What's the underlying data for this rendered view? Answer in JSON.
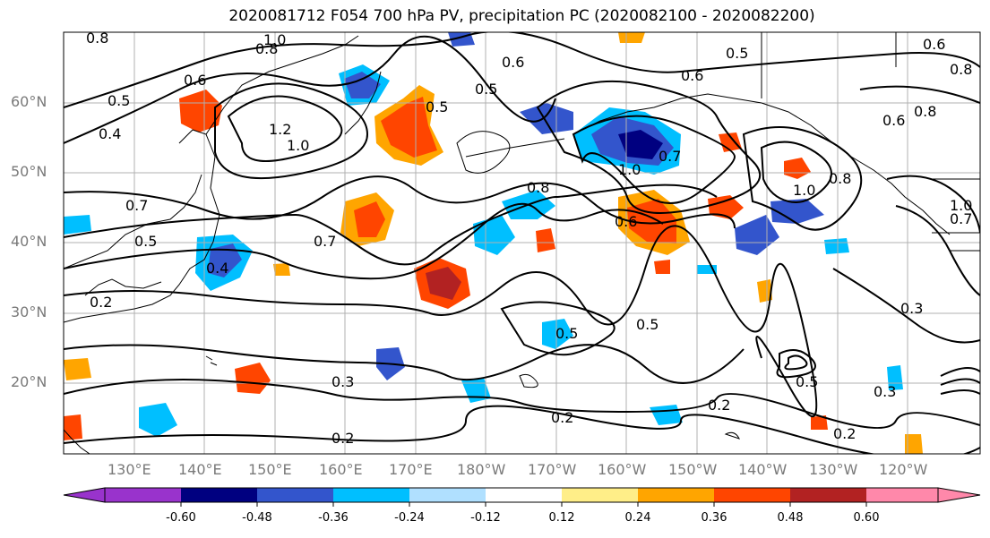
{
  "title": "2020081712 F054 700 hPa PV, precipitation PC (2020082100 - 2020082200)",
  "lat_labels": [
    "60°N",
    "50°N",
    "40°N",
    "30°N",
    "20°N"
  ],
  "lon_labels": [
    "130°E",
    "140°E",
    "150°E",
    "160°E",
    "170°E",
    "180°W",
    "170°W",
    "160°W",
    "150°W",
    "140°W",
    "130°W",
    "120°W"
  ],
  "colorbar": {
    "colors": [
      "#9933cc",
      "#000080",
      "#3355cc",
      "#00bfff",
      "#b0e0ff",
      "#ffffff",
      "#ffee88",
      "#ffa500",
      "#ff4500",
      "#b22222",
      "#ff88aa"
    ],
    "tick_labels": [
      "-0.60",
      "-0.48",
      "-0.36",
      "-0.24",
      "-0.12",
      "0.12",
      "0.24",
      "0.36",
      "0.48",
      "0.60"
    ]
  },
  "contour_labels": [
    "0.8",
    "1.0",
    "0.8",
    "0.6",
    "0.5",
    "0.4",
    "1.2",
    "1.0",
    "0.6",
    "0.5",
    "0.6",
    "0.5",
    "0.5",
    "1.0",
    "0.8",
    "0.6",
    "0.8",
    "0.6",
    "0.7",
    "1.0",
    "0.8",
    "0.6",
    "0.7",
    "0.7",
    "0.5",
    "0.4",
    "0.2",
    "0.5",
    "0.5",
    "0.3",
    "0.3",
    "0.2",
    "0.2",
    "0.2",
    "0.2",
    "0.3",
    "0.5",
    "1.0",
    "0.8",
    "0.7"
  ]
}
